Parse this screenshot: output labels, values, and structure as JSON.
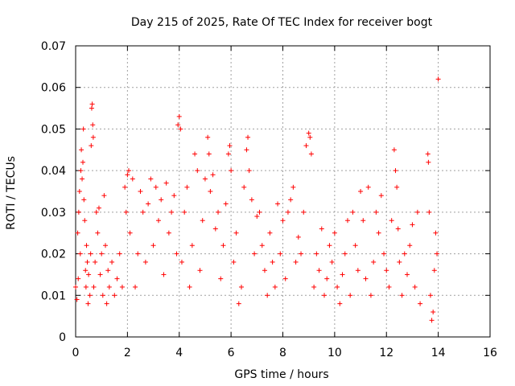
{
  "chart_data": {
    "type": "scatter",
    "title": "Day 215 of 2025, Rate Of TEC Index for receiver bogt",
    "xlabel": "GPS time / hours",
    "ylabel": "ROTI / TECUs",
    "xlim": [
      0,
      16
    ],
    "ylim": [
      0,
      0.07
    ],
    "x_ticks": [
      0,
      2,
      4,
      6,
      8,
      10,
      12,
      14,
      16
    ],
    "x_tick_labels": [
      "0",
      "2",
      "4",
      "6",
      "8",
      "10",
      "12",
      "14",
      "16"
    ],
    "y_ticks": [
      0,
      0.01,
      0.02,
      0.03,
      0.04,
      0.05,
      0.06,
      0.07
    ],
    "y_tick_labels": [
      "0",
      "0.01",
      "0.02",
      "0.03",
      "0.04",
      "0.05",
      "0.06",
      "0.07"
    ],
    "grid": true,
    "marker": "+",
    "color": "#ff0000",
    "series": [
      {
        "name": "ROTI",
        "points": [
          [
            0.0,
            0.012
          ],
          [
            0.05,
            0.009
          ],
          [
            0.08,
            0.025
          ],
          [
            0.1,
            0.014
          ],
          [
            0.12,
            0.03
          ],
          [
            0.15,
            0.035
          ],
          [
            0.18,
            0.02
          ],
          [
            0.2,
            0.04
          ],
          [
            0.22,
            0.045
          ],
          [
            0.25,
            0.038
          ],
          [
            0.28,
            0.042
          ],
          [
            0.3,
            0.05
          ],
          [
            0.32,
            0.033
          ],
          [
            0.35,
            0.028
          ],
          [
            0.38,
            0.016
          ],
          [
            0.4,
            0.012
          ],
          [
            0.42,
            0.022
          ],
          [
            0.45,
            0.018
          ],
          [
            0.48,
            0.008
          ],
          [
            0.5,
            0.015
          ],
          [
            0.55,
            0.01
          ],
          [
            0.58,
            0.02
          ],
          [
            0.6,
            0.046
          ],
          [
            0.62,
            0.055
          ],
          [
            0.64,
            0.056
          ],
          [
            0.66,
            0.051
          ],
          [
            0.68,
            0.048
          ],
          [
            0.7,
            0.012
          ],
          [
            0.75,
            0.018
          ],
          [
            0.8,
            0.03
          ],
          [
            0.85,
            0.025
          ],
          [
            0.9,
            0.031
          ],
          [
            0.95,
            0.015
          ],
          [
            1.0,
            0.02
          ],
          [
            1.05,
            0.01
          ],
          [
            1.1,
            0.034
          ],
          [
            1.15,
            0.022
          ],
          [
            1.2,
            0.008
          ],
          [
            1.25,
            0.016
          ],
          [
            1.3,
            0.012
          ],
          [
            1.4,
            0.018
          ],
          [
            1.5,
            0.01
          ],
          [
            1.6,
            0.014
          ],
          [
            1.7,
            0.02
          ],
          [
            1.8,
            0.012
          ],
          [
            1.9,
            0.036
          ],
          [
            1.95,
            0.03
          ],
          [
            2.0,
            0.039
          ],
          [
            2.05,
            0.04
          ],
          [
            2.1,
            0.025
          ],
          [
            2.2,
            0.038
          ],
          [
            2.3,
            0.012
          ],
          [
            2.4,
            0.02
          ],
          [
            2.5,
            0.035
          ],
          [
            2.6,
            0.03
          ],
          [
            2.7,
            0.018
          ],
          [
            2.8,
            0.032
          ],
          [
            2.9,
            0.038
          ],
          [
            3.0,
            0.022
          ],
          [
            3.1,
            0.036
          ],
          [
            3.2,
            0.028
          ],
          [
            3.3,
            0.033
          ],
          [
            3.4,
            0.015
          ],
          [
            3.5,
            0.037
          ],
          [
            3.6,
            0.025
          ],
          [
            3.7,
            0.03
          ],
          [
            3.8,
            0.034
          ],
          [
            3.9,
            0.02
          ],
          [
            3.95,
            0.051
          ],
          [
            4.0,
            0.053
          ],
          [
            4.05,
            0.05
          ],
          [
            4.1,
            0.018
          ],
          [
            4.2,
            0.03
          ],
          [
            4.3,
            0.036
          ],
          [
            4.4,
            0.012
          ],
          [
            4.5,
            0.022
          ],
          [
            4.6,
            0.044
          ],
          [
            4.7,
            0.04
          ],
          [
            4.8,
            0.016
          ],
          [
            4.9,
            0.028
          ],
          [
            5.0,
            0.038
          ],
          [
            5.1,
            0.048
          ],
          [
            5.15,
            0.044
          ],
          [
            5.2,
            0.035
          ],
          [
            5.3,
            0.039
          ],
          [
            5.4,
            0.026
          ],
          [
            5.5,
            0.03
          ],
          [
            5.6,
            0.014
          ],
          [
            5.7,
            0.022
          ],
          [
            5.8,
            0.032
          ],
          [
            5.9,
            0.044
          ],
          [
            5.95,
            0.046
          ],
          [
            6.0,
            0.04
          ],
          [
            6.1,
            0.018
          ],
          [
            6.2,
            0.025
          ],
          [
            6.3,
            0.008
          ],
          [
            6.4,
            0.012
          ],
          [
            6.5,
            0.036
          ],
          [
            6.6,
            0.045
          ],
          [
            6.65,
            0.048
          ],
          [
            6.7,
            0.04
          ],
          [
            6.8,
            0.033
          ],
          [
            6.9,
            0.02
          ],
          [
            7.0,
            0.029
          ],
          [
            7.1,
            0.03
          ],
          [
            7.2,
            0.022
          ],
          [
            7.3,
            0.016
          ],
          [
            7.4,
            0.01
          ],
          [
            7.5,
            0.025
          ],
          [
            7.6,
            0.018
          ],
          [
            7.7,
            0.012
          ],
          [
            7.8,
            0.032
          ],
          [
            7.9,
            0.02
          ],
          [
            8.0,
            0.028
          ],
          [
            8.1,
            0.014
          ],
          [
            8.2,
            0.03
          ],
          [
            8.3,
            0.033
          ],
          [
            8.4,
            0.036
          ],
          [
            8.5,
            0.018
          ],
          [
            8.6,
            0.024
          ],
          [
            8.7,
            0.02
          ],
          [
            8.8,
            0.03
          ],
          [
            8.9,
            0.046
          ],
          [
            9.0,
            0.049
          ],
          [
            9.05,
            0.048
          ],
          [
            9.1,
            0.044
          ],
          [
            9.2,
            0.012
          ],
          [
            9.3,
            0.02
          ],
          [
            9.4,
            0.016
          ],
          [
            9.5,
            0.026
          ],
          [
            9.6,
            0.01
          ],
          [
            9.7,
            0.014
          ],
          [
            9.8,
            0.022
          ],
          [
            9.9,
            0.018
          ],
          [
            10.0,
            0.025
          ],
          [
            10.1,
            0.012
          ],
          [
            10.2,
            0.008
          ],
          [
            10.3,
            0.015
          ],
          [
            10.4,
            0.02
          ],
          [
            10.5,
            0.028
          ],
          [
            10.6,
            0.01
          ],
          [
            10.7,
            0.03
          ],
          [
            10.8,
            0.022
          ],
          [
            10.9,
            0.016
          ],
          [
            11.0,
            0.035
          ],
          [
            11.1,
            0.028
          ],
          [
            11.2,
            0.014
          ],
          [
            11.3,
            0.036
          ],
          [
            11.4,
            0.01
          ],
          [
            11.5,
            0.018
          ],
          [
            11.6,
            0.03
          ],
          [
            11.7,
            0.025
          ],
          [
            11.8,
            0.034
          ],
          [
            11.9,
            0.02
          ],
          [
            12.0,
            0.016
          ],
          [
            12.1,
            0.012
          ],
          [
            12.2,
            0.028
          ],
          [
            12.3,
            0.045
          ],
          [
            12.35,
            0.04
          ],
          [
            12.4,
            0.036
          ],
          [
            12.45,
            0.026
          ],
          [
            12.5,
            0.018
          ],
          [
            12.6,
            0.01
          ],
          [
            12.7,
            0.02
          ],
          [
            12.8,
            0.015
          ],
          [
            12.9,
            0.022
          ],
          [
            13.0,
            0.027
          ],
          [
            13.1,
            0.012
          ],
          [
            13.2,
            0.03
          ],
          [
            13.3,
            0.008
          ],
          [
            13.6,
            0.044
          ],
          [
            13.62,
            0.042
          ],
          [
            13.65,
            0.03
          ],
          [
            13.7,
            0.01
          ],
          [
            13.75,
            0.004
          ],
          [
            13.8,
            0.006
          ],
          [
            13.85,
            0.016
          ],
          [
            13.9,
            0.025
          ],
          [
            13.95,
            0.02
          ],
          [
            14.0,
            0.062
          ]
        ]
      }
    ]
  }
}
